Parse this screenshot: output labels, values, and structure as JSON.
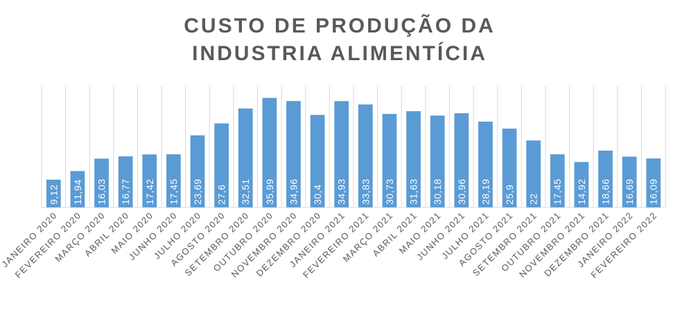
{
  "chart_data": {
    "type": "bar",
    "title": "CUSTO DE PRODUÇÃO DA INDUSTRIA ALIMENTÍCIA",
    "categories": [
      "JANEIRO 2020",
      "FEVEREIRO 2020",
      "MARÇO 2020",
      "ABRIL 2020",
      "MAIO 2020",
      "JUNHO 2020",
      "JULHO 2020",
      "AGOSTO 2020",
      "SETEMBRO 2020",
      "OUTUBRO 2020",
      "NOVEMBRO 2020",
      "DEZEMBRO 2020",
      "JANEIRO 2021",
      "FEVEREIRO 2021",
      "MARÇO 2021",
      "ABRIL 2021",
      "MAIO 2021",
      "JUNHO 2021",
      "JULHO 2021",
      "AGOSTO 2021",
      "SETEMBRO 2021",
      "OUTUBRO 2021",
      "NOVEMBRO 2021",
      "DEZEMBRO 2021",
      "JANEIRO 2022",
      "FEVEREIRO 2022"
    ],
    "values": [
      9.12,
      11.94,
      16.03,
      16.77,
      17.42,
      17.45,
      23.69,
      27.6,
      32.51,
      35.99,
      34.96,
      30.4,
      34.93,
      33.83,
      30.73,
      31.63,
      30.18,
      30.96,
      28.19,
      25.9,
      22,
      17.45,
      14.92,
      18.66,
      16.69,
      16.09
    ],
    "value_labels": [
      "9,12",
      "11,94",
      "16,03",
      "16,77",
      "17,42",
      "17,45",
      "23,69",
      "27,6",
      "32,51",
      "35,99",
      "34,96",
      "30,4",
      "34,93",
      "33,83",
      "30,73",
      "31,63",
      "30,18",
      "30,96",
      "28,19",
      "25,9",
      "22",
      "17,45",
      "14,92",
      "18,66",
      "16,69",
      "16,09"
    ],
    "color": "#5b9bd5",
    "ylim": [
      0,
      40
    ]
  }
}
